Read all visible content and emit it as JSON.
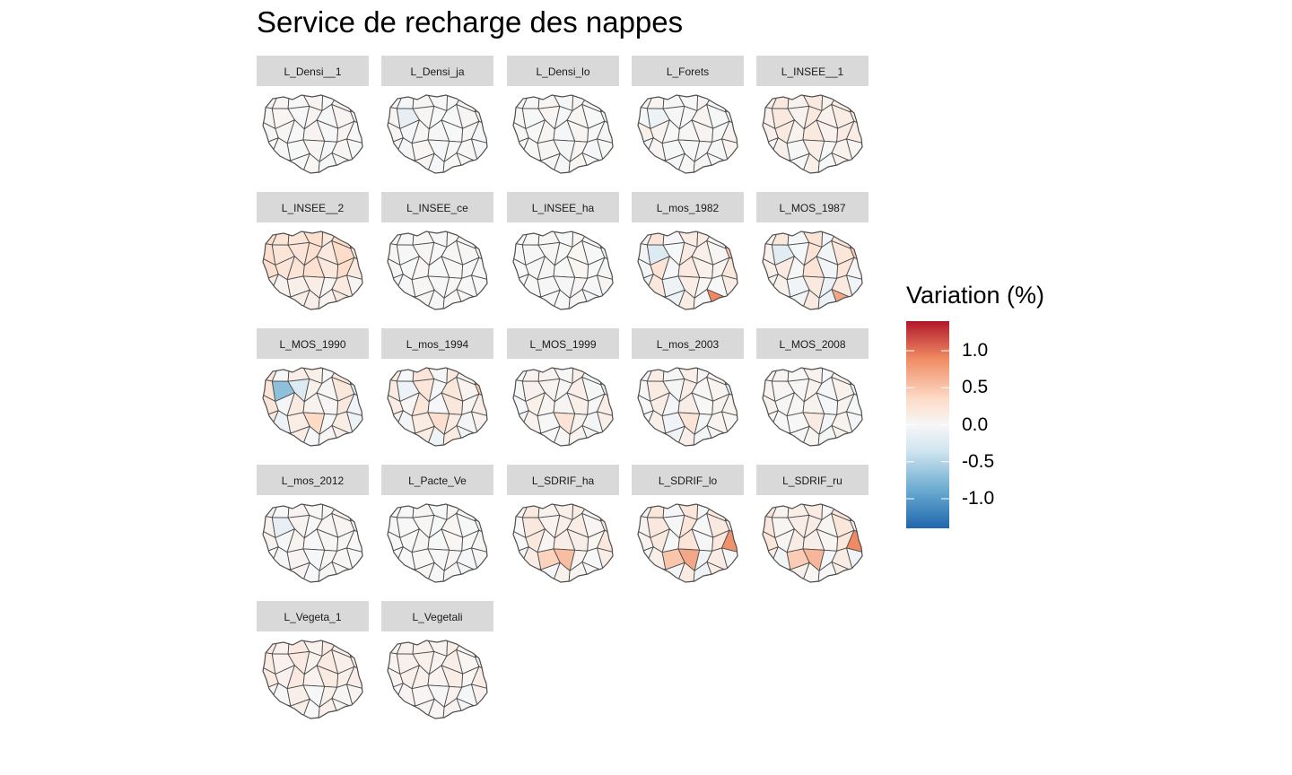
{
  "title": "Service de recharge des nappes",
  "legend": {
    "title": "Variation (%)",
    "breaks": [
      {
        "value": 1.0,
        "label": "1.0"
      },
      {
        "value": 0.5,
        "label": "0.5"
      },
      {
        "value": 0.0,
        "label": "0.0"
      },
      {
        "value": -0.5,
        "label": "-0.5"
      },
      {
        "value": -1.0,
        "label": "-1.0"
      }
    ],
    "range": [
      -1.4,
      1.4
    ],
    "colors": {
      "high": "#b2182b",
      "mid_high": "#ef8a62",
      "light_high": "#fddbc7",
      "mid": "#f7f7f7",
      "light_low": "#d1e5f0",
      "mid_low": "#67a9cf",
      "low": "#2166ac"
    }
  },
  "panels": [
    {
      "label": "L_Densi__1",
      "base": 0.02,
      "spread": 0.03,
      "hot": []
    },
    {
      "label": "L_Densi_ja",
      "base": 0.0,
      "spread": 0.04,
      "hot": [
        [
          8,
          -0.15
        ]
      ]
    },
    {
      "label": "L_Densi_lo",
      "base": 0.01,
      "spread": 0.03,
      "hot": []
    },
    {
      "label": "L_Forets",
      "base": 0.02,
      "spread": 0.05,
      "hot": [
        [
          8,
          -0.1
        ],
        [
          14,
          0.1
        ]
      ]
    },
    {
      "label": "L_INSEE__1",
      "base": 0.12,
      "spread": 0.06,
      "hot": []
    },
    {
      "label": "L_INSEE__2",
      "base": 0.25,
      "spread": 0.08,
      "hot": []
    },
    {
      "label": "L_INSEE_ce",
      "base": 0.01,
      "spread": 0.02,
      "hot": []
    },
    {
      "label": "L_INSEE_ha",
      "base": 0.01,
      "spread": 0.02,
      "hot": []
    },
    {
      "label": "L_mos_1982",
      "base": 0.1,
      "spread": 0.15,
      "hot": [
        [
          34,
          1.4
        ],
        [
          33,
          0.9
        ],
        [
          29,
          0.6
        ],
        [
          8,
          -0.25
        ],
        [
          13,
          0.5
        ],
        [
          6,
          0.35
        ]
      ]
    },
    {
      "label": "L_MOS_1987",
      "base": 0.1,
      "spread": 0.15,
      "hot": [
        [
          34,
          1.3
        ],
        [
          33,
          0.7
        ],
        [
          29,
          0.5
        ],
        [
          8,
          -0.2
        ],
        [
          13,
          0.45
        ]
      ]
    },
    {
      "label": "L_MOS_1990",
      "base": 0.08,
      "spread": 0.15,
      "hot": [
        [
          34,
          1.2
        ],
        [
          8,
          -0.7
        ],
        [
          13,
          -0.2
        ],
        [
          9,
          -0.25
        ],
        [
          24,
          0.35
        ]
      ]
    },
    {
      "label": "L_mos_1994",
      "base": 0.1,
      "spread": 0.12,
      "hot": [
        [
          34,
          0.8
        ],
        [
          13,
          0.5
        ],
        [
          24,
          0.3
        ],
        [
          8,
          -0.1
        ]
      ]
    },
    {
      "label": "L_MOS_1999",
      "base": 0.05,
      "spread": 0.08,
      "hot": [
        [
          13,
          -0.2
        ],
        [
          24,
          0.25
        ]
      ]
    },
    {
      "label": "L_mos_2003",
      "base": 0.05,
      "spread": 0.08,
      "hot": [
        [
          13,
          -0.2
        ],
        [
          24,
          0.25
        ],
        [
          8,
          0.15
        ]
      ]
    },
    {
      "label": "L_MOS_2008",
      "base": 0.03,
      "spread": 0.05,
      "hot": [
        [
          24,
          0.15
        ]
      ]
    },
    {
      "label": "L_mos_2012",
      "base": 0.02,
      "spread": 0.04,
      "hot": [
        [
          8,
          -0.15
        ],
        [
          13,
          -0.1
        ]
      ]
    },
    {
      "label": "L_Pacte_Ve",
      "base": 0.01,
      "spread": 0.02,
      "hot": []
    },
    {
      "label": "L_SDRIF_ha",
      "base": 0.1,
      "spread": 0.1,
      "hot": [
        [
          24,
          0.55
        ],
        [
          23,
          0.4
        ],
        [
          6,
          0.25
        ]
      ]
    },
    {
      "label": "L_SDRIF_lo",
      "base": 0.1,
      "spread": 0.12,
      "hot": [
        [
          24,
          0.7
        ],
        [
          23,
          0.5
        ],
        [
          20,
          0.85
        ],
        [
          6,
          0.3
        ]
      ]
    },
    {
      "label": "L_SDRIF_ru",
      "base": 0.1,
      "spread": 0.12,
      "hot": [
        [
          24,
          0.6
        ],
        [
          23,
          0.45
        ],
        [
          20,
          0.9
        ],
        [
          6,
          0.3
        ]
      ]
    },
    {
      "label": "L_Vegeta_1",
      "base": 0.12,
      "spread": 0.05,
      "hot": []
    },
    {
      "label": "L_Vegetali",
      "base": 0.08,
      "spread": 0.05,
      "hot": []
    }
  ]
}
